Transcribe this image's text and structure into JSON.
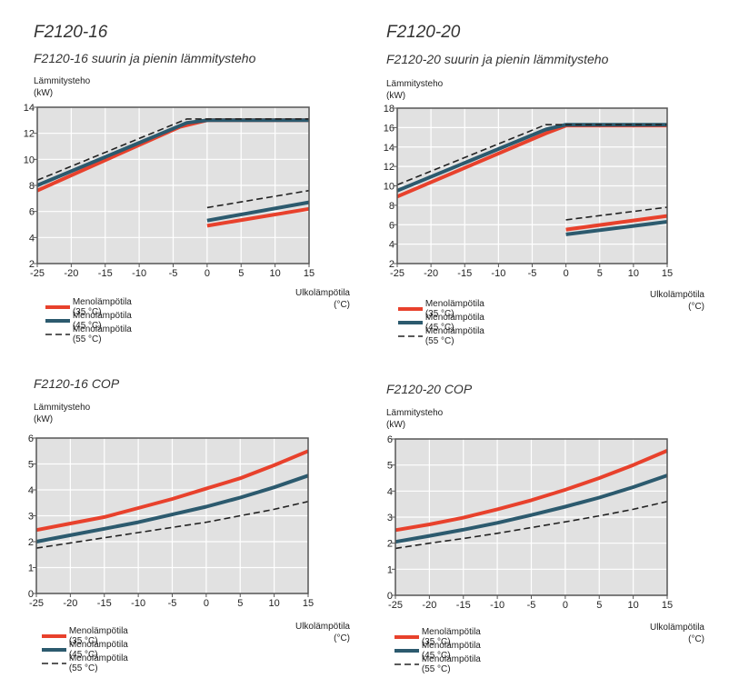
{
  "colors": {
    "s35": "#e8412c",
    "s45": "#2c5a6e",
    "s55": "#222222",
    "plot_bg": "#e1e1e1",
    "grid": "#ffffff",
    "frame": "#555555"
  },
  "chart_data": [
    {
      "type": "line",
      "heading": "F2120-16",
      "title": "F2120-16 suurin ja pienin lämmitysteho",
      "ylabel": "Lämmitysteho\n(kW)",
      "xlabel": "Ulkolämpötila\n(°C)",
      "xlim": [
        -25,
        15
      ],
      "ylim": [
        2,
        14
      ],
      "xticks": [
        -25,
        -20,
        -15,
        -10,
        -5,
        0,
        5,
        10,
        15
      ],
      "xtick_labels": [
        "-25",
        "-20",
        "-15",
        "-10",
        "-5",
        "0",
        "5",
        "10",
        "15"
      ],
      "yticks": [
        2,
        4,
        6,
        8,
        10,
        12,
        14
      ],
      "ytick_labels": [
        "2",
        "4",
        "6",
        "8",
        "10",
        "12",
        "14"
      ],
      "series": [
        {
          "name": "Menolämpötila (35 °C)",
          "key": "s35",
          "segments": [
            [
              [
                -25,
                7.6
              ],
              [
                -4,
                12.5
              ],
              [
                0,
                13.0
              ],
              [
                15,
                13.0
              ]
            ],
            [
              [
                0,
                4.9
              ],
              [
                15,
                6.2
              ]
            ]
          ]
        },
        {
          "name": "Menolämpötila (45 °C)",
          "key": "s45",
          "segments": [
            [
              [
                -25,
                8.0
              ],
              [
                -3,
                12.8
              ],
              [
                0,
                13.0
              ],
              [
                15,
                13.0
              ]
            ],
            [
              [
                0,
                5.3
              ],
              [
                15,
                6.7
              ]
            ]
          ]
        },
        {
          "name": "Menolämpötila (55 °C)",
          "key": "s55",
          "segments": [
            [
              [
                -25,
                8.4
              ],
              [
                -3,
                13.1
              ],
              [
                15,
                13.1
              ]
            ],
            [
              [
                0,
                6.3
              ],
              [
                15,
                7.6
              ]
            ]
          ]
        }
      ]
    },
    {
      "type": "line",
      "heading": "F2120-20",
      "title": "F2120-20 suurin ja pienin lämmitysteho",
      "ylabel": "Lämmitysteho\n(kW)",
      "xlabel": "Ulkolämpötila\n(°C)",
      "xlim": [
        -25,
        15
      ],
      "ylim": [
        2,
        18
      ],
      "xticks": [
        -25,
        -20,
        -15,
        -10,
        -5,
        0,
        5,
        10,
        15
      ],
      "xtick_labels": [
        "-25",
        "-20",
        "-15",
        "-10",
        "-5",
        "0",
        "5",
        "10",
        "15"
      ],
      "yticks": [
        2,
        4,
        6,
        8,
        10,
        12,
        14,
        16,
        18
      ],
      "ytick_labels": [
        "2",
        "4",
        "6",
        "8",
        "10",
        "12",
        "14",
        "16",
        "18"
      ],
      "series": [
        {
          "name": "Menolämpötila (35 °C)",
          "key": "s35",
          "segments": [
            [
              [
                -25,
                8.9
              ],
              [
                -3,
                15.4
              ],
              [
                0,
                16.2
              ],
              [
                15,
                16.2
              ]
            ],
            [
              [
                0,
                5.5
              ],
              [
                15,
                6.9
              ]
            ]
          ]
        },
        {
          "name": "Menolämpötila (45 °C)",
          "key": "s45",
          "segments": [
            [
              [
                -25,
                9.5
              ],
              [
                -3,
                15.8
              ],
              [
                0,
                16.3
              ],
              [
                15,
                16.3
              ]
            ],
            [
              [
                0,
                5.0
              ],
              [
                15,
                6.3
              ]
            ]
          ]
        },
        {
          "name": "Menolämpötila (55 °C)",
          "key": "s55",
          "segments": [
            [
              [
                -25,
                10.1
              ],
              [
                -3,
                16.3
              ],
              [
                15,
                16.3
              ]
            ],
            [
              [
                0,
                6.5
              ],
              [
                15,
                7.8
              ]
            ]
          ]
        }
      ]
    },
    {
      "type": "line",
      "heading": "",
      "title": "F2120-16 COP",
      "ylabel": "Lämmitysteho\n(kW)",
      "xlabel": "Ulkolämpötila\n(°C)",
      "xlim": [
        -25,
        15
      ],
      "ylim": [
        0,
        6
      ],
      "xticks": [
        -25,
        -20,
        -15,
        -10,
        -5,
        0,
        5,
        10,
        15
      ],
      "xtick_labels": [
        "-25",
        "-20",
        "-15",
        "-10",
        "-5",
        "0",
        "5",
        "10",
        "15"
      ],
      "yticks": [
        0,
        1,
        2,
        3,
        4,
        5,
        6
      ],
      "ytick_labels": [
        "0",
        "1",
        "2",
        "3",
        "4",
        "5",
        "6"
      ],
      "series": [
        {
          "name": "Menolämpötila (35 °C)",
          "key": "s35",
          "segments": [
            [
              [
                -25,
                2.45
              ],
              [
                -20,
                2.7
              ],
              [
                -15,
                2.95
              ],
              [
                -10,
                3.3
              ],
              [
                -5,
                3.65
              ],
              [
                0,
                4.05
              ],
              [
                5,
                4.45
              ],
              [
                10,
                4.95
              ],
              [
                15,
                5.5
              ]
            ]
          ]
        },
        {
          "name": "Menolämpötila (45 °C)",
          "key": "s45",
          "segments": [
            [
              [
                -25,
                2.0
              ],
              [
                -20,
                2.25
              ],
              [
                -15,
                2.5
              ],
              [
                -10,
                2.75
              ],
              [
                -5,
                3.05
              ],
              [
                0,
                3.35
              ],
              [
                5,
                3.7
              ],
              [
                10,
                4.1
              ],
              [
                15,
                4.55
              ]
            ]
          ]
        },
        {
          "name": "Menolämpötila (55 °C)",
          "key": "s55",
          "segments": [
            [
              [
                -25,
                1.75
              ],
              [
                -20,
                1.95
              ],
              [
                -15,
                2.15
              ],
              [
                -10,
                2.35
              ],
              [
                -5,
                2.55
              ],
              [
                0,
                2.75
              ],
              [
                5,
                3.0
              ],
              [
                10,
                3.25
              ],
              [
                15,
                3.55
              ]
            ]
          ]
        }
      ]
    },
    {
      "type": "line",
      "heading": "",
      "title": "F2120-20 COP",
      "ylabel": "Lämmitysteho\n(kW)",
      "xlabel": "Ulkolämpötila\n(°C)",
      "xlim": [
        -25,
        15
      ],
      "ylim": [
        0,
        6
      ],
      "xticks": [
        -25,
        -20,
        -15,
        -10,
        -5,
        0,
        5,
        10,
        15
      ],
      "xtick_labels": [
        "-25",
        "-20",
        "-15",
        "-10",
        "-5",
        "0",
        "5",
        "10",
        "15"
      ],
      "yticks": [
        0,
        1,
        2,
        3,
        4,
        5,
        6
      ],
      "ytick_labels": [
        "0",
        "1",
        "2",
        "3",
        "4",
        "5",
        "6"
      ],
      "series": [
        {
          "name": "Menolämpötila (35 °C)",
          "key": "s35",
          "segments": [
            [
              [
                -25,
                2.5
              ],
              [
                -20,
                2.72
              ],
              [
                -15,
                2.98
              ],
              [
                -10,
                3.3
              ],
              [
                -5,
                3.65
              ],
              [
                0,
                4.05
              ],
              [
                5,
                4.5
              ],
              [
                10,
                5.0
              ],
              [
                15,
                5.55
              ]
            ]
          ]
        },
        {
          "name": "Menolämpötila (45 °C)",
          "key": "s45",
          "segments": [
            [
              [
                -25,
                2.05
              ],
              [
                -20,
                2.28
              ],
              [
                -15,
                2.52
              ],
              [
                -10,
                2.78
              ],
              [
                -5,
                3.08
              ],
              [
                0,
                3.4
              ],
              [
                5,
                3.75
              ],
              [
                10,
                4.15
              ],
              [
                15,
                4.6
              ]
            ]
          ]
        },
        {
          "name": "Menolämpötila (55 °C)",
          "key": "s55",
          "segments": [
            [
              [
                -25,
                1.8
              ],
              [
                -20,
                2.0
              ],
              [
                -15,
                2.18
              ],
              [
                -10,
                2.38
              ],
              [
                -5,
                2.6
              ],
              [
                0,
                2.82
              ],
              [
                5,
                3.05
              ],
              [
                10,
                3.3
              ],
              [
                15,
                3.6
              ]
            ]
          ]
        }
      ]
    }
  ]
}
